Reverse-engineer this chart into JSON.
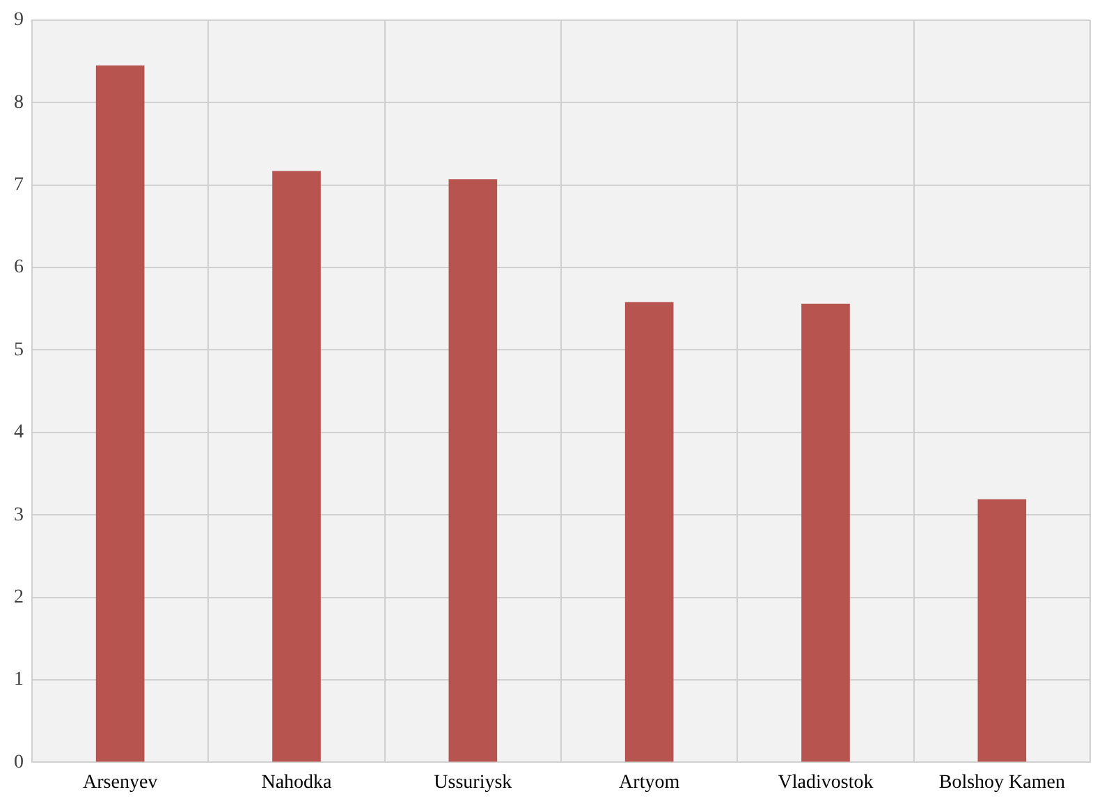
{
  "chart_data": {
    "type": "bar",
    "categories": [
      "Arsenyev",
      "Nahodka",
      "Ussuriysk",
      "Artyom",
      "Vladivostok",
      "Bolshoy Kamen"
    ],
    "values": [
      8.45,
      7.17,
      7.07,
      5.58,
      5.56,
      3.19
    ],
    "color": "#b85450",
    "ylim": [
      0,
      9
    ],
    "yticks": [
      0,
      1,
      2,
      3,
      4,
      5,
      6,
      7,
      8,
      9
    ],
    "grid": true,
    "legend": false
  }
}
